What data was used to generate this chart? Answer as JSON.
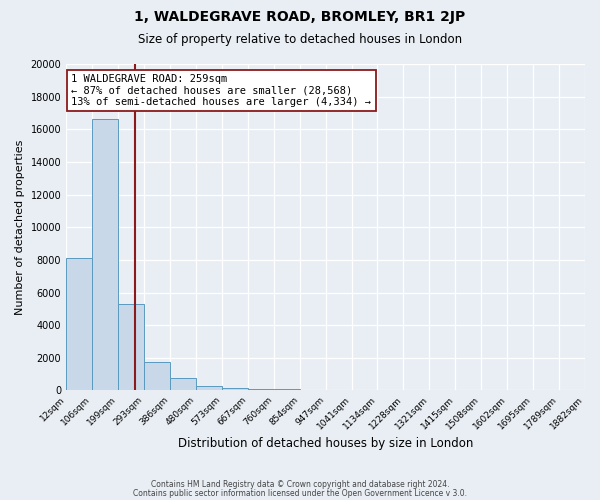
{
  "title": "1, WALDEGRAVE ROAD, BROMLEY, BR1 2JP",
  "subtitle": "Size of property relative to detached houses in London",
  "xlabel": "Distribution of detached houses by size in London",
  "ylabel": "Number of detached properties",
  "bar_color": "#c8d8e8",
  "bar_edge_color": "#5a9abf",
  "bar_heights": [
    8100,
    16600,
    5300,
    1750,
    750,
    300,
    150,
    100,
    100,
    0,
    0,
    0,
    0,
    0,
    0,
    0,
    0,
    0,
    0,
    0
  ],
  "bin_labels": [
    "12sqm",
    "106sqm",
    "199sqm",
    "293sqm",
    "386sqm",
    "480sqm",
    "573sqm",
    "667sqm",
    "760sqm",
    "854sqm",
    "947sqm",
    "1041sqm",
    "1134sqm",
    "1228sqm",
    "1321sqm",
    "1415sqm",
    "1508sqm",
    "1602sqm",
    "1695sqm",
    "1789sqm",
    "1882sqm"
  ],
  "ylim": [
    0,
    20000
  ],
  "yticks": [
    0,
    2000,
    4000,
    6000,
    8000,
    10000,
    12000,
    14000,
    16000,
    18000,
    20000
  ],
  "vline_color": "#8b1a1a",
  "annotation_line1": "1 WALDEGRAVE ROAD: 259sqm",
  "annotation_line2": "← 87% of detached houses are smaller (28,568)",
  "annotation_line3": "13% of semi-detached houses are larger (4,334) →",
  "annotation_box_color": "#ffffff",
  "annotation_box_edge": "#8b1a1a",
  "bg_color": "#e8eef4",
  "grid_color": "#ffffff",
  "footer1": "Contains HM Land Registry data © Crown copyright and database right 2024.",
  "footer2": "Contains public sector information licensed under the Open Government Licence v 3.0."
}
